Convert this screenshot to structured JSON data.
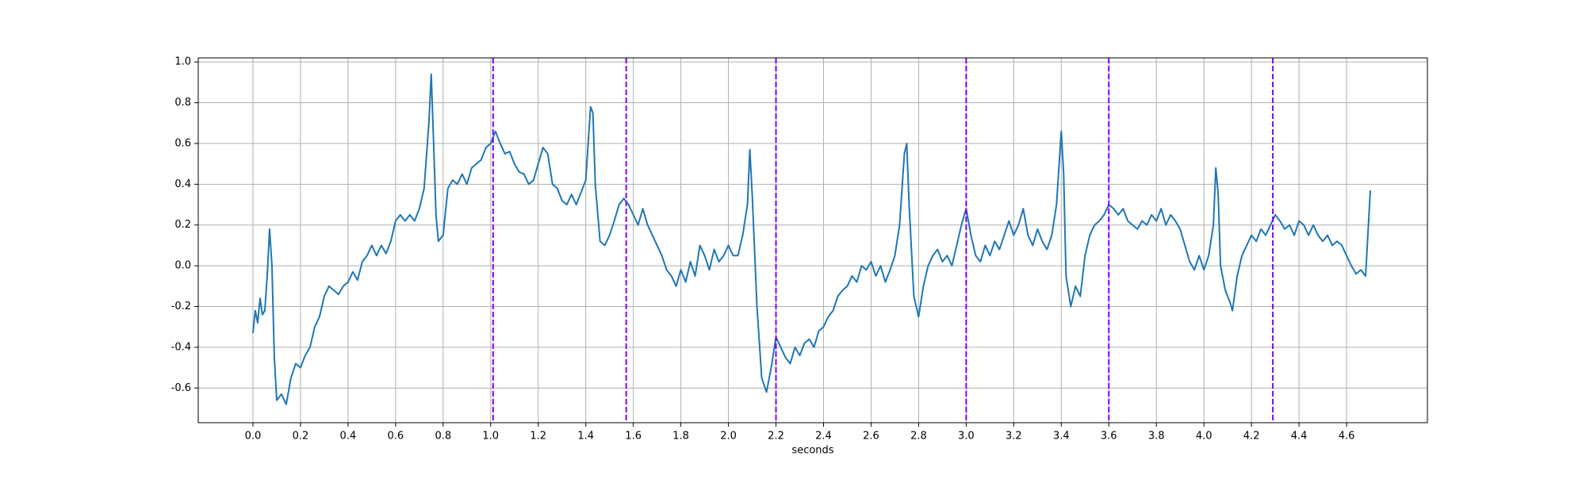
{
  "chart_data": {
    "type": "line",
    "xlabel": "seconds",
    "color": "#1f77b4",
    "grid": true,
    "xlim": [
      -0.23,
      4.94
    ],
    "ylim": [
      -0.77,
      1.02
    ],
    "xticks": [
      {
        "value": 0,
        "label": "0.0"
      },
      0.2,
      0.4,
      0.6,
      0.8,
      {
        "value": 1,
        "label": "1.0"
      },
      1.2,
      1.4,
      1.6,
      1.8,
      {
        "value": 2,
        "label": "2.0"
      },
      2.2,
      2.4,
      2.6,
      2.8,
      {
        "value": 3,
        "label": "3.0"
      },
      3.2,
      3.4,
      3.6,
      3.8,
      {
        "value": 4,
        "label": "4.0"
      },
      4.2,
      4.4,
      4.6
    ],
    "yticks": [
      -0.6,
      -0.4,
      -0.2,
      {
        "value": 0,
        "label": "0.0"
      },
      0.2,
      0.4,
      0.6,
      0.8,
      {
        "value": 1,
        "label": "1.0"
      }
    ],
    "vlines": [
      1.01,
      1.57,
      2.2,
      3.0,
      3.6,
      4.29
    ],
    "vline_color": "#7f00ff",
    "x": [
      0,
      0.01,
      0.02,
      0.03,
      0.04,
      0.05,
      0.06,
      0.07,
      0.08,
      0.09,
      0.1,
      0.12,
      0.14,
      0.16,
      0.18,
      0.2,
      0.22,
      0.24,
      0.26,
      0.28,
      0.3,
      0.32,
      0.34,
      0.36,
      0.38,
      0.4,
      0.42,
      0.44,
      0.46,
      0.48,
      0.5,
      0.52,
      0.54,
      0.56,
      0.58,
      0.6,
      0.62,
      0.64,
      0.66,
      0.68,
      0.7,
      0.72,
      0.74,
      0.75,
      0.76,
      0.77,
      0.78,
      0.8,
      0.82,
      0.84,
      0.86,
      0.88,
      0.9,
      0.92,
      0.94,
      0.96,
      0.98,
      1,
      1.02,
      1.04,
      1.06,
      1.08,
      1.1,
      1.12,
      1.14,
      1.16,
      1.18,
      1.2,
      1.22,
      1.24,
      1.26,
      1.28,
      1.3,
      1.32,
      1.34,
      1.36,
      1.38,
      1.4,
      1.42,
      1.43,
      1.44,
      1.46,
      1.48,
      1.5,
      1.52,
      1.54,
      1.56,
      1.58,
      1.6,
      1.62,
      1.64,
      1.66,
      1.68,
      1.7,
      1.72,
      1.74,
      1.76,
      1.78,
      1.8,
      1.82,
      1.84,
      1.86,
      1.88,
      1.9,
      1.92,
      1.94,
      1.96,
      1.98,
      2,
      2.02,
      2.04,
      2.06,
      2.08,
      2.09,
      2.1,
      2.12,
      2.14,
      2.16,
      2.18,
      2.2,
      2.22,
      2.24,
      2.26,
      2.28,
      2.3,
      2.32,
      2.34,
      2.36,
      2.38,
      2.4,
      2.42,
      2.44,
      2.46,
      2.48,
      2.5,
      2.52,
      2.54,
      2.56,
      2.58,
      2.6,
      2.62,
      2.64,
      2.66,
      2.68,
      2.7,
      2.72,
      2.74,
      2.75,
      2.76,
      2.78,
      2.8,
      2.82,
      2.84,
      2.86,
      2.88,
      2.9,
      2.92,
      2.94,
      2.96,
      2.98,
      3,
      3.02,
      3.04,
      3.06,
      3.08,
      3.1,
      3.12,
      3.14,
      3.16,
      3.18,
      3.2,
      3.22,
      3.24,
      3.26,
      3.28,
      3.3,
      3.32,
      3.34,
      3.36,
      3.38,
      3.4,
      3.41,
      3.42,
      3.44,
      3.46,
      3.48,
      3.5,
      3.52,
      3.54,
      3.56,
      3.58,
      3.6,
      3.62,
      3.64,
      3.66,
      3.68,
      3.7,
      3.72,
      3.74,
      3.76,
      3.78,
      3.8,
      3.82,
      3.84,
      3.86,
      3.88,
      3.9,
      3.92,
      3.94,
      3.96,
      3.98,
      4,
      4.02,
      4.04,
      4.05,
      4.06,
      4.07,
      4.09,
      4.11,
      4.12,
      4.14,
      4.16,
      4.18,
      4.2,
      4.22,
      4.24,
      4.26,
      4.28,
      4.3,
      4.32,
      4.34,
      4.36,
      4.38,
      4.4,
      4.42,
      4.44,
      4.46,
      4.48,
      4.5,
      4.52,
      4.54,
      4.56,
      4.58,
      4.6,
      4.62,
      4.64,
      4.66,
      4.68,
      4.7
    ],
    "values": [
      -0.33,
      -0.22,
      -0.28,
      -0.16,
      -0.24,
      -0.22,
      -0.05,
      0.18,
      0,
      -0.45,
      -0.66,
      -0.63,
      -0.68,
      -0.55,
      -0.48,
      -0.5,
      -0.44,
      -0.4,
      -0.3,
      -0.25,
      -0.15,
      -0.1,
      -0.12,
      -0.14,
      -0.1,
      -0.08,
      -0.03,
      -0.07,
      0.02,
      0.05,
      0.1,
      0.05,
      0.1,
      0.06,
      0.12,
      0.22,
      0.25,
      0.22,
      0.25,
      0.22,
      0.28,
      0.38,
      0.7,
      0.94,
      0.6,
      0.25,
      0.12,
      0.15,
      0.38,
      0.42,
      0.4,
      0.45,
      0.4,
      0.48,
      0.5,
      0.52,
      0.58,
      0.6,
      0.66,
      0.6,
      0.55,
      0.56,
      0.5,
      0.46,
      0.45,
      0.4,
      0.42,
      0.5,
      0.58,
      0.55,
      0.4,
      0.38,
      0.32,
      0.3,
      0.35,
      0.3,
      0.36,
      0.42,
      0.78,
      0.75,
      0.4,
      0.12,
      0.1,
      0.15,
      0.22,
      0.3,
      0.33,
      0.3,
      0.25,
      0.2,
      0.28,
      0.2,
      0.15,
      0.1,
      0.05,
      -0.02,
      -0.05,
      -0.1,
      -0.02,
      -0.08,
      0.02,
      -0.05,
      0.1,
      0.05,
      -0.02,
      0.08,
      0.02,
      0.05,
      0.1,
      0.05,
      0.05,
      0.15,
      0.3,
      0.57,
      0.35,
      -0.2,
      -0.55,
      -0.62,
      -0.5,
      -0.35,
      -0.4,
      -0.45,
      -0.48,
      -0.4,
      -0.44,
      -0.38,
      -0.36,
      -0.4,
      -0.32,
      -0.3,
      -0.25,
      -0.22,
      -0.15,
      -0.12,
      -0.1,
      -0.05,
      -0.08,
      0,
      -0.02,
      0.02,
      -0.05,
      0,
      -0.08,
      -0.02,
      0.05,
      0.2,
      0.55,
      0.6,
      0.3,
      -0.15,
      -0.25,
      -0.1,
      0,
      0.05,
      0.08,
      0.02,
      0.05,
      0,
      0.1,
      0.2,
      0.28,
      0.15,
      0.05,
      0.02,
      0.1,
      0.05,
      0.12,
      0.08,
      0.15,
      0.22,
      0.15,
      0.2,
      0.28,
      0.15,
      0.1,
      0.18,
      0.12,
      0.08,
      0.15,
      0.3,
      0.66,
      0.45,
      -0.05,
      -0.2,
      -0.1,
      -0.15,
      0.05,
      0.15,
      0.2,
      0.22,
      0.25,
      0.3,
      0.28,
      0.25,
      0.28,
      0.22,
      0.2,
      0.18,
      0.22,
      0.2,
      0.25,
      0.22,
      0.28,
      0.2,
      0.25,
      0.22,
      0.18,
      0.1,
      0.02,
      -0.02,
      0.05,
      -0.02,
      0.05,
      0.2,
      0.48,
      0.35,
      0,
      -0.12,
      -0.18,
      -0.22,
      -0.05,
      0.05,
      0.1,
      0.15,
      0.12,
      0.18,
      0.15,
      0.2,
      0.25,
      0.22,
      0.18,
      0.2,
      0.15,
      0.22,
      0.2,
      0.15,
      0.2,
      0.15,
      0.12,
      0.15,
      0.1,
      0.12,
      0.1,
      0.05,
      0,
      -0.04,
      -0.02,
      -0.05,
      0.37
    ]
  }
}
